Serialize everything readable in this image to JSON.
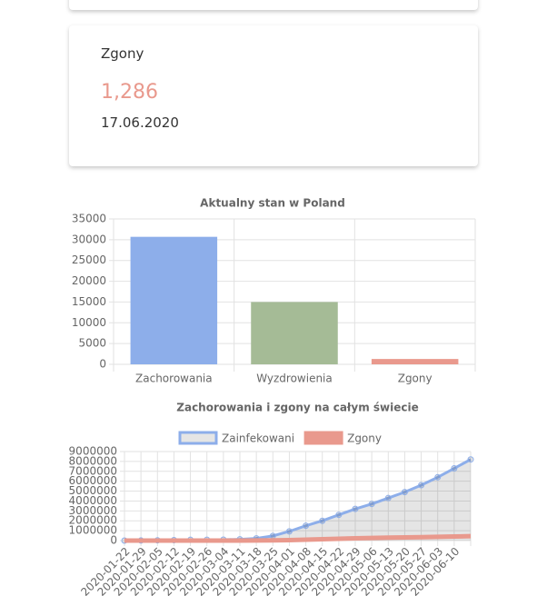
{
  "card": {
    "title": "Zgony",
    "value": "1,286",
    "date": "17.06.2020"
  },
  "chart_data": [
    {
      "type": "bar",
      "title": "Aktualny stan w Poland",
      "categories": [
        "Zachorowania",
        "Wyzdrowienia",
        "Zgony"
      ],
      "values": [
        30700,
        15000,
        1286
      ],
      "colors": [
        "#8daeea",
        "#a5bb96",
        "#e9998d"
      ],
      "ylim": [
        0,
        35000
      ],
      "yticks": [
        0,
        5000,
        10000,
        15000,
        20000,
        25000,
        30000,
        35000
      ],
      "grid": true
    },
    {
      "type": "line",
      "title": "Zachorowania i zgony na całym świecie",
      "categories": [
        "2020-01-22",
        "2020-01-29",
        "2020-02-05",
        "2020-02-12",
        "2020-02-19",
        "2020-02-26",
        "2020-03-04",
        "2020-03-11",
        "2020-03-18",
        "2020-03-25",
        "2020-04-01",
        "2020-04-08",
        "2020-04-15",
        "2020-04-22",
        "2020-04-29",
        "2020-05-06",
        "2020-05-13",
        "2020-05-20",
        "2020-05-27",
        "2020-06-03",
        "2020-06-10",
        null
      ],
      "series": [
        {
          "name": "Zainfekowani",
          "color": "#8daeea",
          "values": [
            555,
            6000,
            28000,
            45000,
            75000,
            81000,
            95000,
            126000,
            215000,
            470000,
            930000,
            1500000,
            2000000,
            2600000,
            3200000,
            3700000,
            4300000,
            4900000,
            5600000,
            6400000,
            7300000,
            8200000
          ]
        },
        {
          "name": "Zgony",
          "color": "#e9998d",
          "values": [
            17,
            130,
            560,
            1100,
            2100,
            2800,
            3300,
            4600,
            8700,
            21000,
            47000,
            88000,
            134000,
            184000,
            228000,
            264000,
            297000,
            325000,
            350000,
            380000,
            410000,
            445000
          ]
        }
      ],
      "ylim": [
        0,
        9000000
      ],
      "yticks": [
        0,
        1000000,
        2000000,
        3000000,
        4000000,
        5000000,
        6000000,
        7000000,
        8000000,
        9000000
      ],
      "grid": true,
      "legend": "top"
    }
  ]
}
